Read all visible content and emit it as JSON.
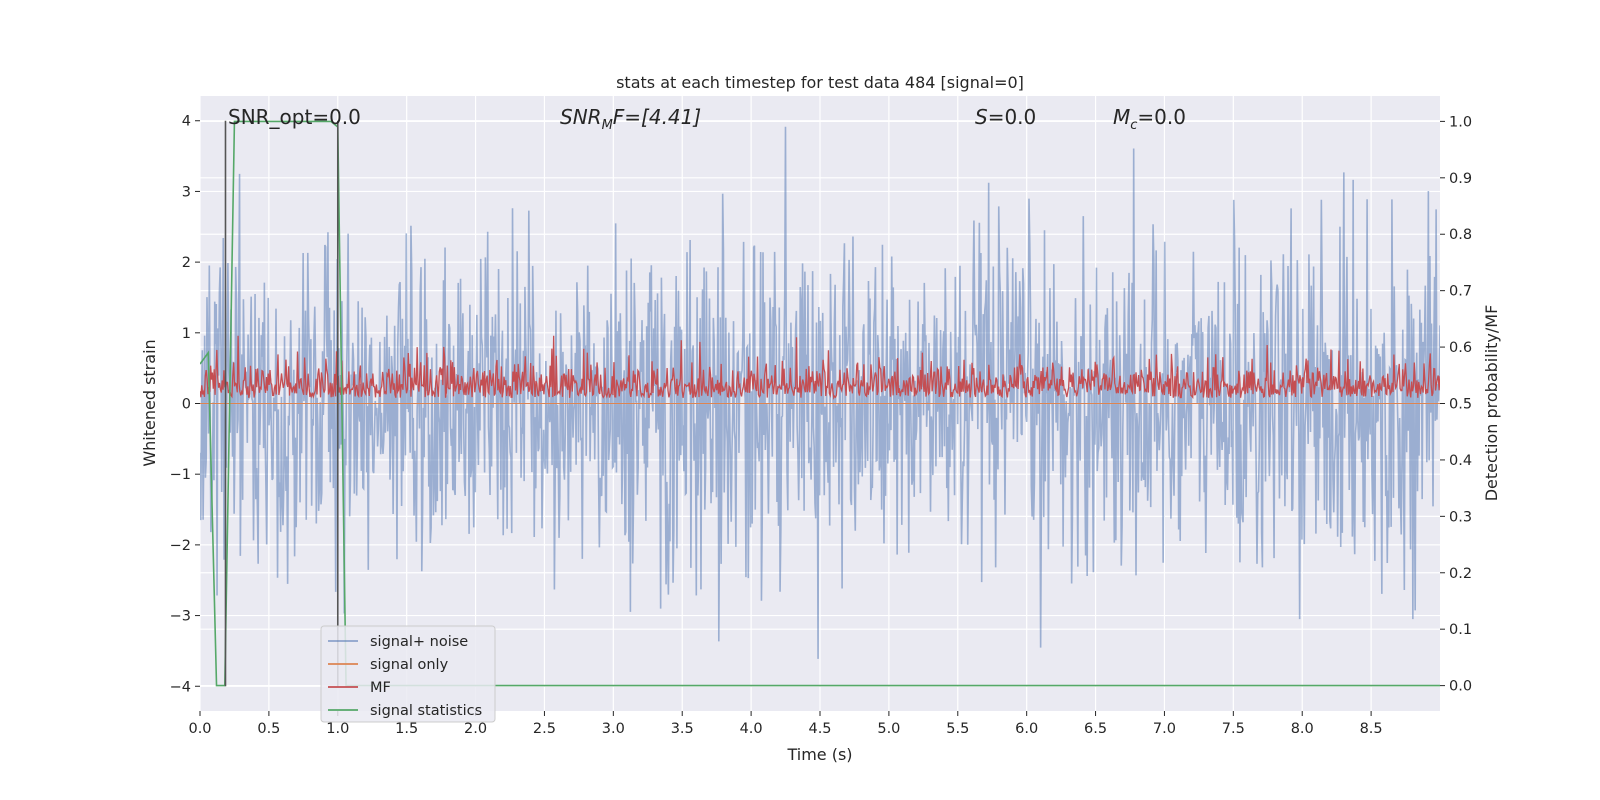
{
  "chart_data": {
    "type": "line",
    "title": "stats at each timestep for test data 484 [signal=0]",
    "xlabel": "Time (s)",
    "ylabel": "Whitened strain",
    "y2label": "Detection probability/MF",
    "xlim": [
      0.0,
      9.0
    ],
    "ylim": [
      -4.35,
      4.35
    ],
    "y2lim": [
      -0.045,
      1.045
    ],
    "xticks": [
      "0.0",
      "0.5",
      "1.0",
      "1.5",
      "2.0",
      "2.5",
      "3.0",
      "3.5",
      "4.0",
      "4.5",
      "5.0",
      "5.5",
      "6.0",
      "6.5",
      "7.0",
      "7.5",
      "8.0",
      "8.5"
    ],
    "xtick_values": [
      0.0,
      0.5,
      1.0,
      1.5,
      2.0,
      2.5,
      3.0,
      3.5,
      4.0,
      4.5,
      5.0,
      5.5,
      6.0,
      6.5,
      7.0,
      7.5,
      8.0,
      8.5
    ],
    "yticks": [
      "−4",
      "−3",
      "−2",
      "−1",
      "0",
      "1",
      "2",
      "3",
      "4"
    ],
    "ytick_values": [
      -4,
      -3,
      -2,
      -1,
      0,
      1,
      2,
      3,
      4
    ],
    "y2ticks": [
      "0.0",
      "0.1",
      "0.2",
      "0.3",
      "0.4",
      "0.5",
      "0.6",
      "0.7",
      "0.8",
      "0.9",
      "1.0"
    ],
    "y2tick_values": [
      0.0,
      0.1,
      0.2,
      0.3,
      0.4,
      0.5,
      0.6,
      0.7,
      0.8,
      0.9,
      1.0
    ],
    "grid": true,
    "legend_placement": "lower-left",
    "annotations": {
      "snr_opt": "SNR_opt=0.0",
      "snr_mf_main": "SNR",
      "snr_mf_sub": "M",
      "snr_mf_rest": "F=[4.41]",
      "s_main": "S",
      "s_rest": "=0.0",
      "mc_main": "M",
      "mc_sub": "c",
      "mc_rest": "=0.0"
    },
    "series": [
      {
        "name": "signal+ noise",
        "color": "#4c72b0",
        "axis": "left",
        "kind": "noise",
        "std": 1.0,
        "x_range": [
          0.0,
          9.0
        ]
      },
      {
        "name": "signal only",
        "color": "#dd8452",
        "axis": "left",
        "kind": "flat",
        "value": 0.0
      },
      {
        "name": "MF",
        "color": "#c44e52",
        "axis": "right",
        "kind": "mf",
        "baseline": 0.52,
        "x_range": [
          0.0,
          9.0
        ]
      },
      {
        "name": "signal statistics",
        "color": "#55a868",
        "axis": "right",
        "x": [
          0.0,
          0.06,
          0.12,
          0.18,
          0.25,
          0.95,
          1.0,
          1.06,
          1.12,
          9.0
        ],
        "y": [
          0.57,
          0.59,
          0.0,
          0.0,
          1.0,
          1.0,
          0.99,
          0.0,
          0.0,
          0.0
        ]
      }
    ],
    "vertical_lines": [
      {
        "x": 0.185,
        "color": "#555555",
        "y_range": [
          -4.0,
          4.0
        ]
      },
      {
        "x": 1.0,
        "color": "#555555",
        "y_range": [
          -4.0,
          4.0
        ]
      }
    ]
  }
}
